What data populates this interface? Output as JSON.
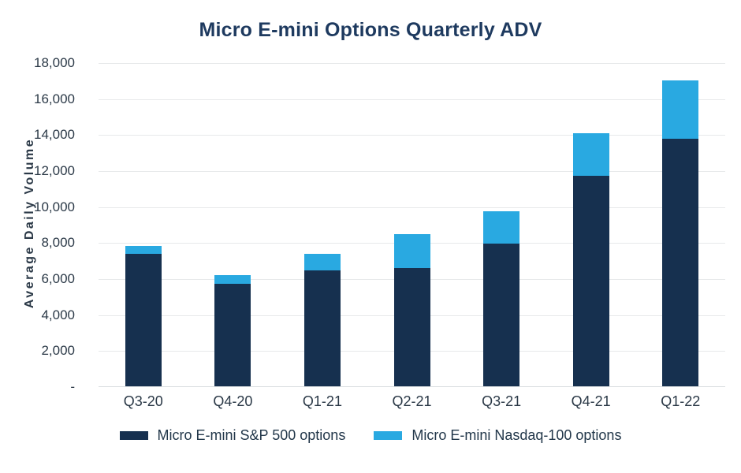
{
  "chart_data": {
    "type": "bar",
    "stacked": true,
    "title": "Micro E-mini Options Quarterly ADV",
    "xlabel": "",
    "ylabel": "Average Daily Volume",
    "categories": [
      "Q3-20",
      "Q4-20",
      "Q1-21",
      "Q2-21",
      "Q3-21",
      "Q4-21",
      "Q1-22"
    ],
    "series": [
      {
        "name": "Micro E-mini S&P 500 options",
        "color": "#16304F",
        "values": [
          7400,
          5750,
          6500,
          6600,
          7950,
          11750,
          13800
        ]
      },
      {
        "name": "Micro E-mini Nasdaq-100 options",
        "color": "#29A9E1",
        "values": [
          450,
          450,
          900,
          1900,
          1800,
          2350,
          3250
        ]
      }
    ],
    "totals": [
      7850,
      6200,
      7400,
      8500,
      9750,
      14100,
      17050
    ],
    "ylim": [
      0,
      18000
    ],
    "ytick_step": 2000,
    "ytick_labels": [
      "-",
      "2,000",
      "4,000",
      "6,000",
      "8,000",
      "10,000",
      "12,000",
      "14,000",
      "16,000",
      "18,000"
    ],
    "grid": "horizontal",
    "legend_position": "bottom"
  },
  "colors": {
    "title": "#1E3A5F",
    "axis_text": "#2B3947",
    "gridline": "#e7e9ea",
    "baseline": "#d9dde0",
    "background": "#ffffff"
  }
}
